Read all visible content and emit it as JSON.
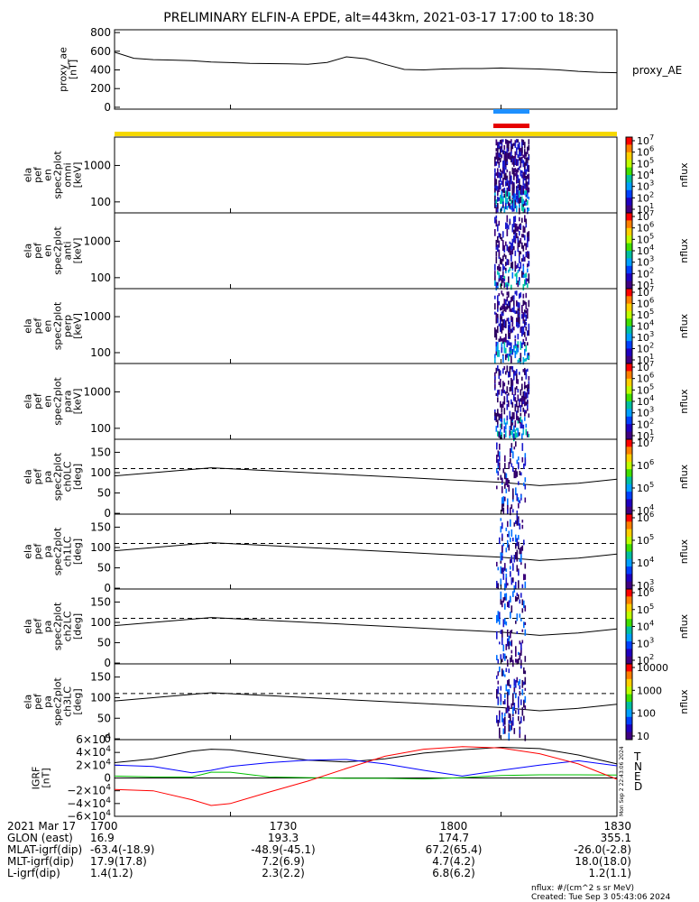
{
  "title": "PRELIMINARY ELFIN-A EPDE, alt=443km, 2021-03-17 17:00 to 18:30",
  "chart_data": [
    {
      "type": "line",
      "panel": "proxy_ae",
      "ylabel_lines": [
        "proxy_ae",
        "[nT]"
      ],
      "series_label": "proxy_AE",
      "yticks": [
        "800",
        "600",
        "400",
        "200",
        "0"
      ],
      "ylim": [
        -20,
        830
      ],
      "x": [
        1700,
        1705,
        1710,
        1715,
        1720,
        1725,
        1730,
        1735,
        1740,
        1745,
        1750,
        1755,
        1760,
        1765,
        1770,
        1775,
        1780,
        1785,
        1790,
        1795,
        1800,
        1805,
        1810,
        1815,
        1820,
        1825,
        1830
      ],
      "values": [
        590,
        525,
        510,
        505,
        500,
        485,
        478,
        470,
        468,
        465,
        460,
        480,
        540,
        520,
        460,
        405,
        400,
        410,
        415,
        415,
        420,
        415,
        410,
        400,
        385,
        375,
        370
      ]
    },
    {
      "type": "heatmap",
      "panel": "energy spectrogram omni",
      "ylabel_lines": [
        "ela",
        "pef",
        "en",
        "spec2plot",
        "omni",
        "[keV]"
      ],
      "yticks": [
        "1000",
        "100"
      ],
      "colorbar_label": "nflux",
      "colorbar_ticks": [
        "10^7",
        "10^6",
        "10^5",
        "10^4",
        "10^3",
        "10^2",
        "10^1"
      ]
    },
    {
      "type": "heatmap",
      "panel": "energy spectrogram anti",
      "ylabel_lines": [
        "ela",
        "pef",
        "en",
        "spec2plot",
        "anti",
        "[keV]"
      ],
      "yticks": [
        "1000",
        "100"
      ],
      "colorbar_label": "nflux",
      "colorbar_ticks": [
        "10^7",
        "10^6",
        "10^5",
        "10^4",
        "10^3",
        "10^2",
        "10^1"
      ]
    },
    {
      "type": "heatmap",
      "panel": "energy spectrogram perp",
      "ylabel_lines": [
        "ela",
        "pef",
        "en",
        "spec2plot",
        "perp",
        "[keV]"
      ],
      "yticks": [
        "1000",
        "100"
      ],
      "colorbar_label": "nflux",
      "colorbar_ticks": [
        "10^7",
        "10^6",
        "10^5",
        "10^4",
        "10^3",
        "10^2",
        "10^1"
      ]
    },
    {
      "type": "heatmap",
      "panel": "energy spectrogram para",
      "ylabel_lines": [
        "ela",
        "pef",
        "en",
        "spec2plot",
        "para",
        "[keV]"
      ],
      "yticks": [
        "1000",
        "100"
      ],
      "colorbar_label": "nflux",
      "colorbar_ticks": [
        "10^7",
        "10^6",
        "10^5",
        "10^4",
        "10^3",
        "10^2",
        "10^1"
      ]
    },
    {
      "type": "heatmap",
      "panel": "pitch angle ch0LC",
      "ylabel_lines": [
        "ela",
        "pef",
        "pa",
        "spec2plot",
        "ch0LC",
        "[deg]"
      ],
      "yticks": [
        "150",
        "100",
        "50",
        "0"
      ],
      "colorbar_label": "nflux",
      "colorbar_ticks": [
        "10^7",
        "10^6",
        "10^5",
        "10^4"
      ]
    },
    {
      "type": "heatmap",
      "panel": "pitch angle ch1LC",
      "ylabel_lines": [
        "ela",
        "pef",
        "pa",
        "spec2plot",
        "ch1LC",
        "[deg]"
      ],
      "yticks": [
        "150",
        "100",
        "50",
        "0"
      ],
      "colorbar_label": "nflux",
      "colorbar_ticks": [
        "10^6",
        "10^5",
        "10^4",
        "10^3"
      ]
    },
    {
      "type": "heatmap",
      "panel": "pitch angle ch2LC",
      "ylabel_lines": [
        "ela",
        "pef",
        "pa",
        "spec2plot",
        "ch2LC",
        "[deg]"
      ],
      "yticks": [
        "150",
        "100",
        "50",
        "0"
      ],
      "colorbar_label": "nflux",
      "colorbar_ticks": [
        "10^6",
        "10^5",
        "10^4",
        "10^3",
        "10^2"
      ]
    },
    {
      "type": "heatmap",
      "panel": "pitch angle ch3LC",
      "ylabel_lines": [
        "ela",
        "pef",
        "pa",
        "spec2plot",
        "ch3LC",
        "[deg]"
      ],
      "yticks": [
        "150",
        "100",
        "50",
        "0"
      ],
      "colorbar_label": "nflux",
      "colorbar_ticks": [
        "10000",
        "1000",
        "100",
        "10"
      ]
    },
    {
      "type": "line",
      "panel": "IGRF",
      "ylabel_lines": [
        "IGRF",
        "[nT]"
      ],
      "yticks": [
        "6×10^4",
        "4×10^4",
        "2×10^4",
        "0",
        "−2×10^4",
        "−4×10^4",
        "−6×10^4"
      ],
      "ylim": [
        -60000,
        60000
      ],
      "legend": [
        "T",
        "N",
        "E",
        "D"
      ],
      "legend_colors": [
        "#000000",
        "#0000ff",
        "#00c000",
        "#ff0000"
      ],
      "x": [
        1700,
        1710,
        1720,
        1725,
        1730,
        1740,
        1750,
        1760,
        1770,
        1780,
        1790,
        1800,
        1810,
        1820,
        1830
      ],
      "series": [
        {
          "name": "T",
          "color": "#000000",
          "values": [
            24000,
            30000,
            42000,
            45000,
            44000,
            36000,
            28000,
            25000,
            30000,
            39000,
            44000,
            48000,
            46000,
            36000,
            22000
          ]
        },
        {
          "name": "N",
          "color": "#0000ff",
          "values": [
            20000,
            18000,
            8000,
            12000,
            18000,
            24000,
            28000,
            29000,
            22000,
            12000,
            3000,
            12000,
            20000,
            27000,
            19000
          ]
        },
        {
          "name": "E",
          "color": "#00c000",
          "values": [
            3000,
            1500,
            1500,
            9000,
            9000,
            1500,
            500,
            -500,
            -500,
            -1500,
            500,
            4000,
            5000,
            5000,
            4500
          ]
        },
        {
          "name": "D",
          "color": "#ff0000",
          "values": [
            -18000,
            -20000,
            -34000,
            -43000,
            -40000,
            -22000,
            -5000,
            15000,
            34000,
            45000,
            49000,
            47000,
            38000,
            22000,
            -2000
          ]
        }
      ]
    }
  ],
  "bars": {
    "top_color": "#1e90ff",
    "bottom_color": "#e60000",
    "strip_color": "#f5d800"
  },
  "xaxis": {
    "ticks": [
      "1700",
      "1730",
      "1800",
      "1830"
    ],
    "rows": [
      {
        "label": "2021 Mar 17",
        "values": [
          "1700",
          "1730",
          "1800",
          "1830"
        ]
      },
      {
        "label": "GLON (east)",
        "values": [
          "16.9",
          "193.3",
          "174.7",
          "355.1"
        ]
      },
      {
        "label": "MLAT-igrf(dip)",
        "values": "-63.4(-18.9)|-48.9(-45.1)|67.2(65.4)|-26.0(-2.8)"
      },
      {
        "label": "MLT-igrf(dip)",
        "values": "17.9(17.8)|7.2(6.9)|4.7(4.2)|18.0(18.0)"
      },
      {
        "label": "L-igrf(dip)",
        "values": [
          "1.4(1.2)",
          "2.3(2.2)",
          "6.8(6.2)",
          "1.2(1.1)"
        ]
      }
    ]
  },
  "footer": {
    "units": "nflux: #/(cm^2 s sr MeV)",
    "created": "Created: Tue Sep  3 05:43:06 2024",
    "side_stamp": "Mon Sep  2 22:43:06 2024"
  }
}
